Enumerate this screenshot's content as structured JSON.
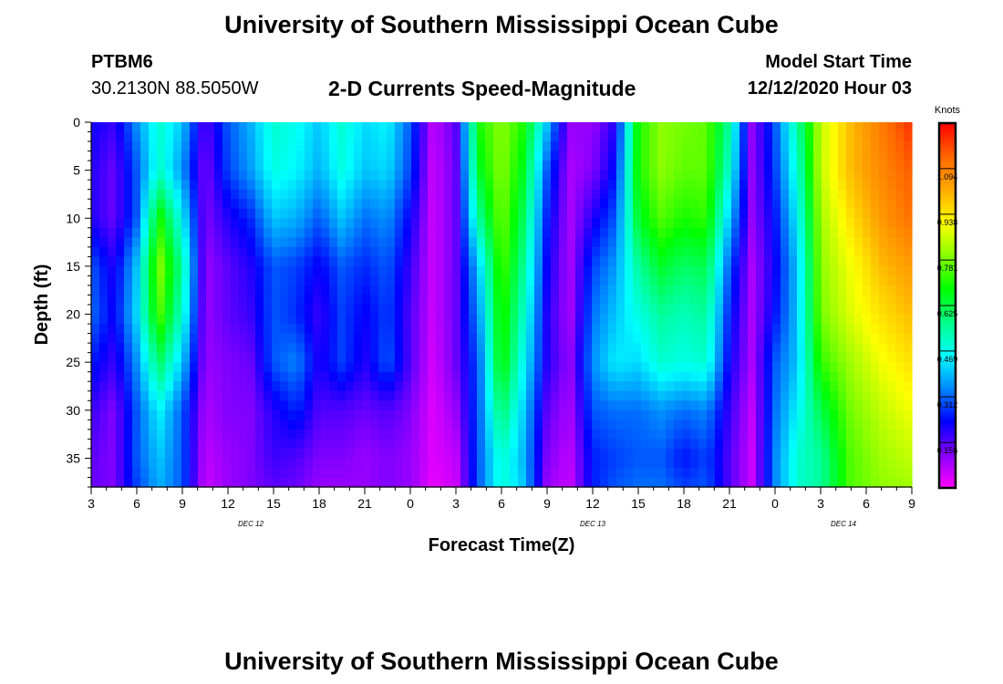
{
  "header": {
    "title": "University of Southern Mississippi Ocean Cube",
    "station_id": "PTBM6",
    "station_location": "30.2130N 88.5050W",
    "subtitle": "2-D Currents Speed-Magnitude",
    "model_start_label": "Model Start Time",
    "model_start_value": "12/12/2020 Hour 03"
  },
  "footer": {
    "title": "University of Southern Mississippi Ocean Cube"
  },
  "chart_data": {
    "type": "heatmap",
    "title": "2-D Currents Speed-Magnitude",
    "xlabel": "Forecast Time(Z)",
    "ylabel": "Depth (ft)",
    "x_tick_labels": [
      "3",
      "6",
      "9",
      "12",
      "15",
      "18",
      "21",
      "0",
      "3",
      "6",
      "9",
      "12",
      "15",
      "18",
      "21",
      "0",
      "3",
      "6",
      "9"
    ],
    "x_range_hours": [
      0,
      54
    ],
    "x_tick_step_hours": 3,
    "day_labels": [
      {
        "text": "DEC 12",
        "hour": 10.5
      },
      {
        "text": "DEC 13",
        "hour": 33
      },
      {
        "text": "DEC 14",
        "hour": 49.5
      }
    ],
    "y_tick_labels": [
      "0",
      "5",
      "10",
      "15",
      "20",
      "25",
      "30",
      "35"
    ],
    "y_range_ft": [
      0,
      38
    ],
    "y_reversed": true,
    "colorbar": {
      "unit": "Knots",
      "tick_labels": [
        "1.094",
        "0.938",
        "0.781",
        "0.625",
        "0.469",
        "0.312",
        "0.156"
      ],
      "tick_values": [
        1.094,
        0.938,
        0.781,
        0.625,
        0.469,
        0.312,
        0.156
      ],
      "min": 0.0,
      "max": 1.25,
      "colors": [
        "#ff00ff",
        "#8800ff",
        "#0000ff",
        "#0088ff",
        "#00ffff",
        "#00ff88",
        "#00ff00",
        "#88ff00",
        "#ffff00",
        "#ffaa00",
        "#ff6600",
        "#ff0000"
      ]
    },
    "depth_profiles_ft": [
      0,
      5,
      10,
      15,
      20,
      25,
      30,
      35,
      38
    ],
    "speed_profiles_knots": [
      {
        "hour": 0,
        "values": [
          0.22,
          0.2,
          0.2,
          0.3,
          0.32,
          0.25,
          0.18,
          0.15,
          0.14
        ]
      },
      {
        "hour": 1.5,
        "values": [
          0.18,
          0.14,
          0.14,
          0.2,
          0.22,
          0.18,
          0.12,
          0.12,
          0.12
        ]
      },
      {
        "hour": 3,
        "values": [
          0.35,
          0.3,
          0.3,
          0.4,
          0.42,
          0.35,
          0.3,
          0.3,
          0.28
        ]
      },
      {
        "hour": 4.5,
        "values": [
          0.5,
          0.5,
          0.7,
          0.8,
          0.75,
          0.6,
          0.45,
          0.4,
          0.38
        ]
      },
      {
        "hour": 6,
        "values": [
          0.4,
          0.35,
          0.45,
          0.55,
          0.5,
          0.4,
          0.3,
          0.3,
          0.3
        ]
      },
      {
        "hour": 7.5,
        "values": [
          0.15,
          0.12,
          0.12,
          0.1,
          0.1,
          0.1,
          0.08,
          0.06,
          0.05
        ]
      },
      {
        "hour": 9,
        "values": [
          0.3,
          0.28,
          0.2,
          0.15,
          0.15,
          0.12,
          0.12,
          0.1,
          0.1
        ]
      },
      {
        "hour": 10.5,
        "values": [
          0.38,
          0.36,
          0.26,
          0.2,
          0.18,
          0.14,
          0.12,
          0.12,
          0.12
        ]
      },
      {
        "hour": 12,
        "values": [
          0.5,
          0.48,
          0.4,
          0.3,
          0.3,
          0.3,
          0.2,
          0.18,
          0.15
        ]
      },
      {
        "hour": 13.5,
        "values": [
          0.47,
          0.45,
          0.38,
          0.28,
          0.26,
          0.34,
          0.26,
          0.16,
          0.14
        ]
      },
      {
        "hour": 15,
        "values": [
          0.4,
          0.38,
          0.3,
          0.22,
          0.18,
          0.2,
          0.16,
          0.12,
          0.1
        ]
      },
      {
        "hour": 16.5,
        "values": [
          0.5,
          0.48,
          0.4,
          0.3,
          0.28,
          0.28,
          0.16,
          0.12,
          0.1
        ]
      },
      {
        "hour": 18,
        "values": [
          0.42,
          0.4,
          0.32,
          0.26,
          0.22,
          0.2,
          0.14,
          0.1,
          0.1
        ]
      },
      {
        "hour": 19.5,
        "values": [
          0.45,
          0.42,
          0.35,
          0.3,
          0.28,
          0.3,
          0.16,
          0.12,
          0.12
        ]
      },
      {
        "hour": 21,
        "values": [
          0.3,
          0.28,
          0.22,
          0.18,
          0.16,
          0.16,
          0.12,
          0.1,
          0.1
        ]
      },
      {
        "hour": 22.5,
        "values": [
          0.06,
          0.05,
          0.05,
          0.05,
          0.05,
          0.04,
          0.03,
          0.03,
          0.02
        ]
      },
      {
        "hour": 24,
        "values": [
          0.15,
          0.14,
          0.14,
          0.14,
          0.14,
          0.14,
          0.1,
          0.06,
          0.05
        ]
      },
      {
        "hour": 25.5,
        "values": [
          0.7,
          0.65,
          0.55,
          0.4,
          0.35,
          0.3,
          0.3,
          0.3,
          0.3
        ]
      },
      {
        "hour": 27,
        "values": [
          0.8,
          0.8,
          0.78,
          0.75,
          0.72,
          0.7,
          0.6,
          0.5,
          0.5
        ]
      },
      {
        "hour": 28.5,
        "values": [
          0.7,
          0.65,
          0.6,
          0.55,
          0.5,
          0.45,
          0.4,
          0.38,
          0.4
        ]
      },
      {
        "hour": 30,
        "values": [
          0.4,
          0.3,
          0.25,
          0.22,
          0.2,
          0.2,
          0.15,
          0.12,
          0.1
        ]
      },
      {
        "hour": 31.5,
        "values": [
          0.1,
          0.08,
          0.08,
          0.08,
          0.08,
          0.1,
          0.08,
          0.06,
          0.05
        ]
      },
      {
        "hour": 33,
        "values": [
          0.1,
          0.12,
          0.2,
          0.28,
          0.32,
          0.35,
          0.3,
          0.25,
          0.25
        ]
      },
      {
        "hour": 34.5,
        "values": [
          0.2,
          0.24,
          0.3,
          0.36,
          0.4,
          0.44,
          0.32,
          0.28,
          0.3
        ]
      },
      {
        "hour": 36,
        "values": [
          0.7,
          0.7,
          0.65,
          0.55,
          0.48,
          0.42,
          0.32,
          0.3,
          0.32
        ]
      },
      {
        "hour": 37.5,
        "values": [
          0.8,
          0.8,
          0.75,
          0.65,
          0.55,
          0.5,
          0.35,
          0.3,
          0.32
        ]
      },
      {
        "hour": 39,
        "values": [
          0.78,
          0.76,
          0.7,
          0.6,
          0.52,
          0.48,
          0.32,
          0.24,
          0.28
        ]
      },
      {
        "hour": 40.5,
        "values": [
          0.76,
          0.76,
          0.72,
          0.62,
          0.55,
          0.5,
          0.34,
          0.28,
          0.3
        ]
      },
      {
        "hour": 42,
        "values": [
          0.55,
          0.5,
          0.4,
          0.3,
          0.25,
          0.22,
          0.18,
          0.16,
          0.16
        ]
      },
      {
        "hour": 43.5,
        "values": [
          0.1,
          0.1,
          0.1,
          0.08,
          0.08,
          0.08,
          0.06,
          0.05,
          0.05
        ]
      },
      {
        "hour": 45,
        "values": [
          0.3,
          0.28,
          0.24,
          0.22,
          0.24,
          0.3,
          0.32,
          0.34,
          0.34
        ]
      },
      {
        "hour": 46.5,
        "values": [
          0.55,
          0.5,
          0.45,
          0.4,
          0.4,
          0.4,
          0.45,
          0.5,
          0.5
        ]
      },
      {
        "hour": 48,
        "values": [
          0.85,
          0.85,
          0.82,
          0.8,
          0.78,
          0.72,
          0.62,
          0.55,
          0.55
        ]
      },
      {
        "hour": 50,
        "values": [
          1.0,
          1.0,
          0.95,
          0.9,
          0.88,
          0.82,
          0.78,
          0.75,
          0.75
        ]
      },
      {
        "hour": 52,
        "values": [
          1.1,
          1.08,
          1.05,
          1.0,
          0.95,
          0.9,
          0.85,
          0.82,
          0.8
        ]
      },
      {
        "hour": 54,
        "values": [
          1.2,
          1.15,
          1.12,
          1.05,
          1.0,
          0.95,
          0.9,
          0.85,
          0.82
        ]
      }
    ]
  }
}
